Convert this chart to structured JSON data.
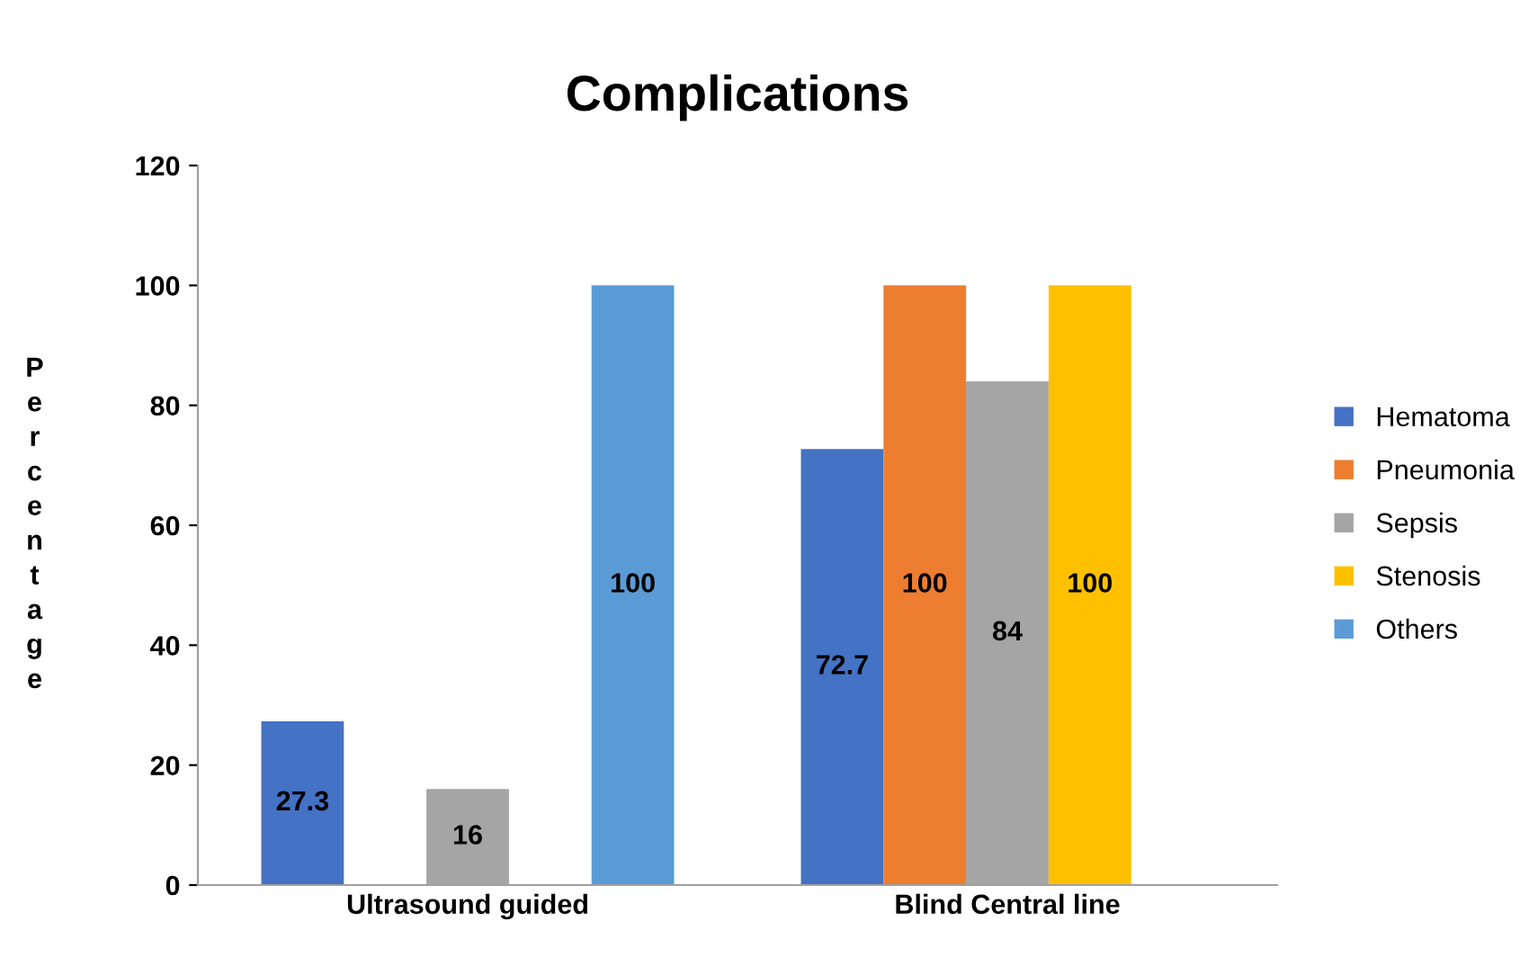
{
  "chart_data": {
    "type": "bar",
    "title": "Complications",
    "ylabel": "Percentage",
    "categories": [
      "Ultrasound guided",
      "Blind Central line"
    ],
    "series": [
      {
        "name": "Hematoma",
        "color": "#4472c4",
        "values": [
          27.3,
          72.7
        ],
        "value_labels": [
          "27.3",
          "72.7"
        ]
      },
      {
        "name": "Pneumonia",
        "color": "#ed7d31",
        "values": [
          null,
          100
        ],
        "value_labels": [
          null,
          "100"
        ]
      },
      {
        "name": "Sepsis",
        "color": "#a5a5a5",
        "values": [
          16,
          84
        ],
        "value_labels": [
          "16",
          "84"
        ]
      },
      {
        "name": "Stenosis",
        "color": "#ffc000",
        "values": [
          null,
          100
        ],
        "value_labels": [
          null,
          "100"
        ]
      },
      {
        "name": "Others",
        "color": "#5b9bd5",
        "values": [
          100,
          null
        ],
        "value_labels": [
          "100",
          null
        ]
      }
    ],
    "ylim": [
      0,
      120
    ],
    "yticks": [
      0,
      20,
      40,
      60,
      80,
      100,
      120
    ],
    "grid": false,
    "legend": "right"
  }
}
